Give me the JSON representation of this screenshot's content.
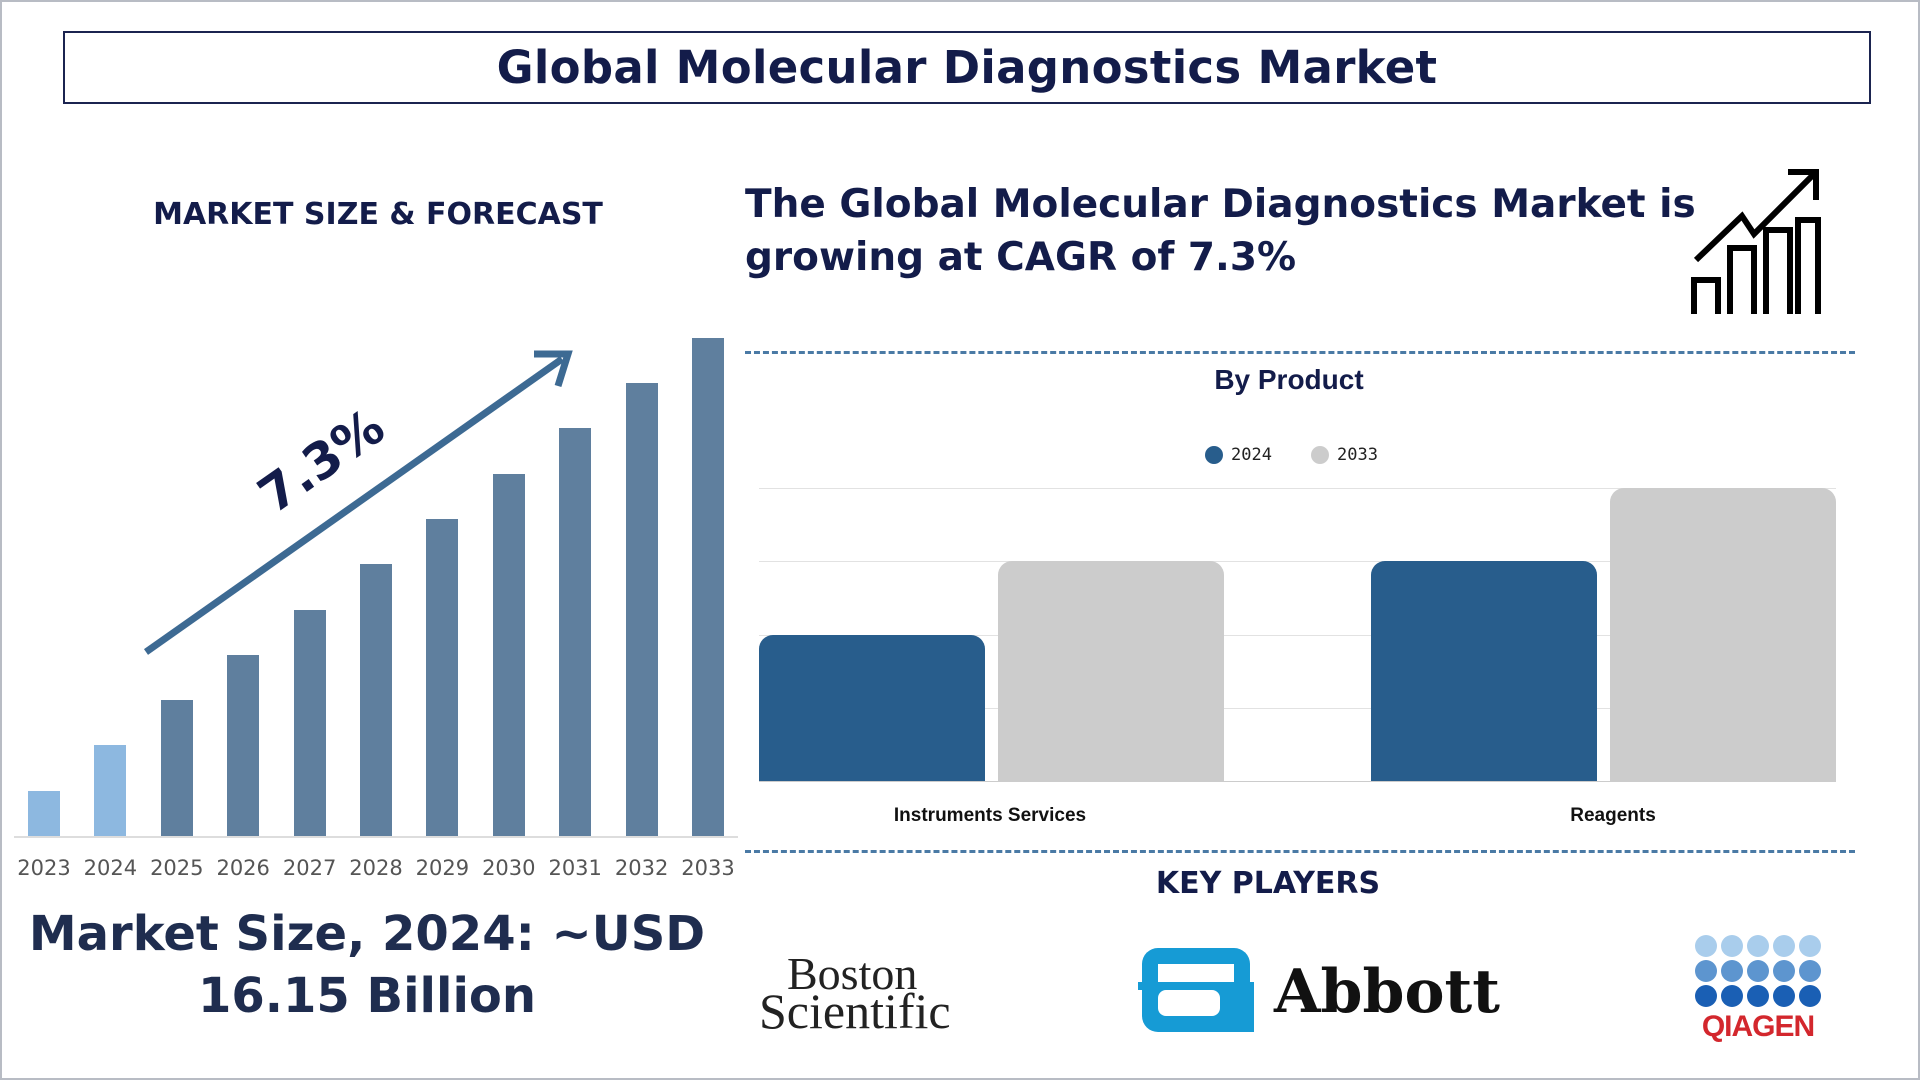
{
  "title": "Global Molecular Diagnostics Market",
  "left_panel": {
    "heading": "MARKET SIZE & FORECAST",
    "cagr_label": "7.3%",
    "market_size_line1": "Market Size, 2024: ~USD",
    "market_size_line2": "16.15 Billion"
  },
  "headline": "The Global Molecular Diagnostics Market is growing at CAGR of 7.3%",
  "key_players": {
    "heading": "KEY PLAYERS",
    "logos": [
      "Boston Scientific",
      "Abbott",
      "QIAGEN"
    ]
  },
  "colors": {
    "navy": "#131c4a",
    "bar_history": "#8db8e0",
    "bar_forecast": "#5f7f9e",
    "series_2024": "#285d8c",
    "series_2033": "#cccccc",
    "dash": "#4a7aa5"
  },
  "chart_data": [
    {
      "type": "bar",
      "title": "",
      "categories": [
        "2023",
        "2024",
        "2025",
        "2026",
        "2027",
        "2028",
        "2029",
        "2030",
        "2031",
        "2032",
        "2033"
      ],
      "values": [
        1,
        2,
        3,
        4,
        5,
        6,
        7,
        8,
        9,
        10,
        11
      ],
      "note_units": "relative (no y-axis printed)",
      "grid": false
    },
    {
      "type": "bar",
      "title": "By Product",
      "categories": [
        "Instruments Services",
        "Reagents"
      ],
      "series": [
        {
          "name": "2024",
          "values": [
            2,
            3
          ]
        },
        {
          "name": "2033",
          "values": [
            3,
            4
          ]
        }
      ],
      "ylim": [
        0,
        4
      ],
      "grid": true,
      "legend": "top-center"
    }
  ]
}
